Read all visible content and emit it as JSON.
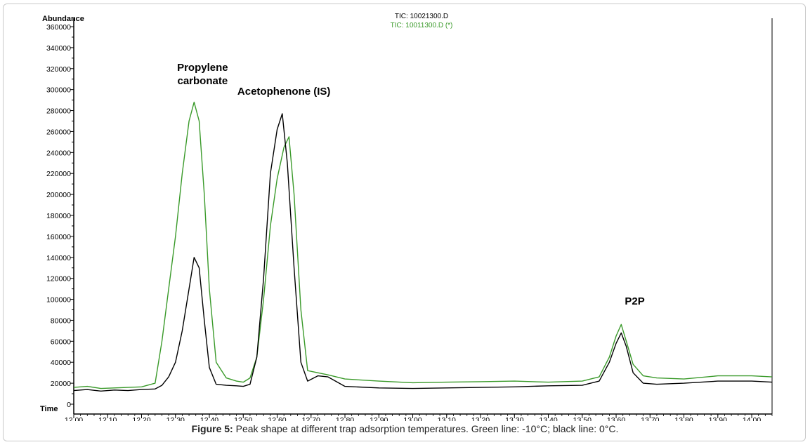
{
  "caption": {
    "label": "Figure 5:",
    "text": " Peak shape at different trap adsorption temperatures. Green line: -10°C; black line: 0°C."
  },
  "colors": {
    "green": "#3a9a2a",
    "black": "#000000",
    "axis": "#000000"
  },
  "chart_data": {
    "type": "line",
    "ylabel": "Abundance",
    "xlabel": "Time",
    "xlim": [
      12.0,
      14.06
    ],
    "ylim": [
      0,
      360000
    ],
    "x_ticks": [
      "12.00",
      "12.10",
      "12.20",
      "12.30",
      "12.40",
      "12.50",
      "12.60",
      "12.70",
      "12.80",
      "12.90",
      "13.00",
      "13.10",
      "13.20",
      "13.30",
      "13.40",
      "13.50",
      "13.60",
      "13.70",
      "13.80",
      "13.90",
      "14.00"
    ],
    "y_ticks": [
      0,
      20000,
      40000,
      60000,
      80000,
      100000,
      120000,
      140000,
      160000,
      180000,
      200000,
      220000,
      240000,
      260000,
      280000,
      300000,
      320000,
      340000,
      360000
    ],
    "legend": [
      "TIC: 10021300.D",
      "TIC: 10011300.D (*)"
    ],
    "annotations": [
      {
        "text": "Propylene",
        "x": 12.38,
        "y": 318000
      },
      {
        "text": "carbonate",
        "x": 12.38,
        "y": 305000
      },
      {
        "text": "Acetophenone (IS)",
        "x": 12.62,
        "y": 295000
      },
      {
        "text": "P2P",
        "x": 13.655,
        "y": 95000
      }
    ],
    "series": [
      {
        "name": "TIC: 10011300.D (*)",
        "color": "#3a9a2a",
        "x": [
          12.0,
          12.04,
          12.08,
          12.12,
          12.16,
          12.2,
          12.24,
          12.26,
          12.28,
          12.3,
          12.32,
          12.34,
          12.355,
          12.37,
          12.385,
          12.4,
          12.42,
          12.45,
          12.48,
          12.5,
          12.52,
          12.54,
          12.56,
          12.58,
          12.6,
          12.62,
          12.635,
          12.65,
          12.67,
          12.69,
          12.72,
          12.75,
          12.8,
          12.9,
          13.0,
          13.1,
          13.2,
          13.3,
          13.4,
          13.5,
          13.55,
          13.58,
          13.6,
          13.615,
          13.63,
          13.65,
          13.68,
          13.72,
          13.8,
          13.9,
          14.0,
          14.06
        ],
        "y": [
          16000,
          17000,
          15000,
          15500,
          16000,
          16500,
          20000,
          60000,
          110000,
          160000,
          220000,
          270000,
          288000,
          270000,
          200000,
          110000,
          40000,
          25000,
          22000,
          21000,
          25000,
          45000,
          100000,
          170000,
          215000,
          245000,
          255000,
          200000,
          90000,
          32000,
          30000,
          28000,
          24000,
          22000,
          20500,
          21000,
          21500,
          22000,
          21000,
          22000,
          26000,
          45000,
          65000,
          76000,
          60000,
          38000,
          27000,
          25000,
          24000,
          27000,
          27000,
          26000
        ]
      },
      {
        "name": "TIC: 10021300.D",
        "color": "#000000",
        "x": [
          12.0,
          12.04,
          12.08,
          12.12,
          12.16,
          12.2,
          12.24,
          12.26,
          12.28,
          12.3,
          12.32,
          12.34,
          12.355,
          12.37,
          12.385,
          12.4,
          12.42,
          12.45,
          12.48,
          12.5,
          12.52,
          12.54,
          12.56,
          12.58,
          12.6,
          12.615,
          12.63,
          12.65,
          12.67,
          12.69,
          12.72,
          12.75,
          12.8,
          12.9,
          13.0,
          13.1,
          13.2,
          13.3,
          13.4,
          13.5,
          13.55,
          13.58,
          13.6,
          13.615,
          13.63,
          13.65,
          13.68,
          13.72,
          13.8,
          13.9,
          14.0,
          14.06
        ],
        "y": [
          13000,
          14000,
          12500,
          13500,
          13000,
          14000,
          14500,
          18000,
          26000,
          40000,
          70000,
          110000,
          140000,
          130000,
          80000,
          35000,
          19000,
          18000,
          17500,
          17000,
          19000,
          45000,
          120000,
          220000,
          262000,
          277000,
          230000,
          130000,
          40000,
          22000,
          27000,
          26000,
          17000,
          15500,
          15000,
          15500,
          16000,
          16500,
          17500,
          18000,
          22000,
          40000,
          58000,
          68000,
          55000,
          30000,
          20000,
          19000,
          20000,
          22000,
          22000,
          21000
        ]
      }
    ]
  }
}
